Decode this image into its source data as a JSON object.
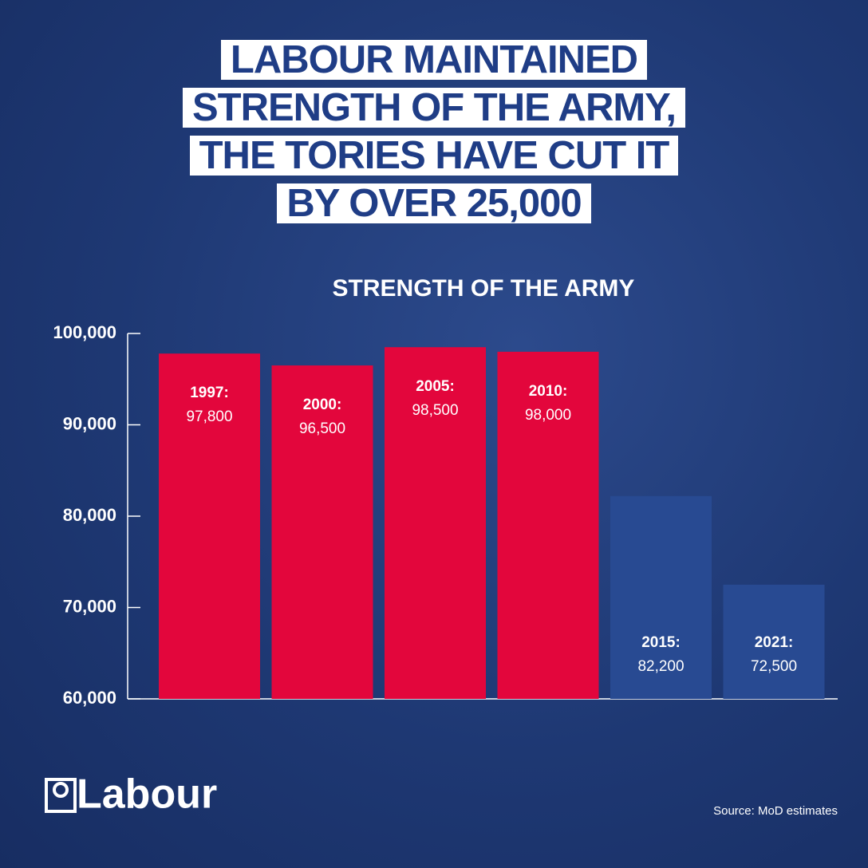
{
  "chart_data": {
    "type": "bar",
    "title_lines": [
      "LABOUR MAINTAINED",
      "STRENGTH OF THE ARMY,",
      "THE TORIES HAVE CUT IT",
      "BY OVER 25,000"
    ],
    "subtitle": "STRENGTH OF THE ARMY",
    "categories": [
      "1997:",
      "2000:",
      "2005:",
      "2010:",
      "2015:",
      "2021:"
    ],
    "values": [
      97800,
      96500,
      98500,
      98000,
      82200,
      72500
    ],
    "value_labels": [
      "97,800",
      "96,500",
      "98,500",
      "98,000",
      "82,200",
      "72,500"
    ],
    "colors": [
      "#e3063c",
      "#e3063c",
      "#e3063c",
      "#e3063c",
      "#284a92",
      "#284a92"
    ],
    "ylim": [
      60000,
      100000
    ],
    "yticks": [
      {
        "value": 60000,
        "label": "60,000"
      },
      {
        "value": 70000,
        "label": "70,000"
      },
      {
        "value": 80000,
        "label": "80,000"
      },
      {
        "value": 90000,
        "label": "90,000"
      },
      {
        "value": 100000,
        "label": "100,000"
      }
    ],
    "logo": "Labour",
    "source": "Source: MoD estimates"
  }
}
